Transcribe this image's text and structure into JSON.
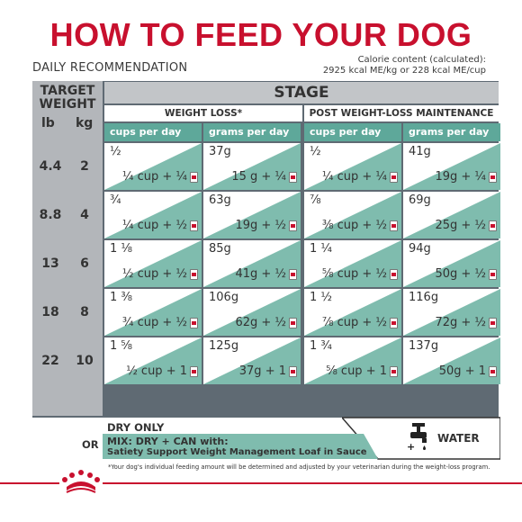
{
  "title": "HOW TO FEED YOUR DOG",
  "subtitle": "DAILY RECOMMENDATION",
  "calorie": {
    "line1": "Calorie content (calculated):",
    "line2": "2925 kcal ME/kg or 228 kcal ME/cup"
  },
  "weight_header": {
    "line1": "TARGET",
    "line2": "WEIGHT",
    "unit_lb": "lb",
    "unit_kg": "kg"
  },
  "stage_label": "STAGE",
  "groups": [
    "WEIGHT LOSS*",
    "POST WEIGHT-LOSS MAINTENANCE"
  ],
  "columns": [
    "cups per day",
    "grams per day",
    "cups per day",
    "grams per day"
  ],
  "rows": [
    {
      "lb": "4.4",
      "kg": "2",
      "cells": [
        {
          "top": "½",
          "bot": "¼ cup + ¼"
        },
        {
          "top": "37g",
          "bot": "15 g + ¼"
        },
        {
          "top": "½",
          "bot": "¼ cup + ¼"
        },
        {
          "top": "41g",
          "bot": "19g + ¼"
        }
      ]
    },
    {
      "lb": "8.8",
      "kg": "4",
      "cells": [
        {
          "top": "¾",
          "bot": "¼ cup + ½"
        },
        {
          "top": "63g",
          "bot": "19g + ½"
        },
        {
          "top": "⅞",
          "bot": "⅜ cup + ½"
        },
        {
          "top": "69g",
          "bot": "25g + ½"
        }
      ]
    },
    {
      "lb": "13",
      "kg": "6",
      "cells": [
        {
          "top": "1 ⅛",
          "bot": "½ cup + ½"
        },
        {
          "top": "85g",
          "bot": "41g + ½"
        },
        {
          "top": "1 ¼",
          "bot": "⅝ cup + ½"
        },
        {
          "top": "94g",
          "bot": "50g + ½"
        }
      ]
    },
    {
      "lb": "18",
      "kg": "8",
      "cells": [
        {
          "top": "1 ⅜",
          "bot": "¾ cup + ½"
        },
        {
          "top": "106g",
          "bot": "62g + ½"
        },
        {
          "top": "1 ½",
          "bot": "⅞ cup + ½"
        },
        {
          "top": "116g",
          "bot": "72g + ½"
        }
      ]
    },
    {
      "lb": "22",
      "kg": "10",
      "cells": [
        {
          "top": "1 ⅝",
          "bot": "½ cup + 1"
        },
        {
          "top": "125g",
          "bot": "37g + 1"
        },
        {
          "top": "1 ¾",
          "bot": "⅝ cup + 1"
        },
        {
          "top": "137g",
          "bot": "50g + 1"
        }
      ]
    }
  ],
  "dry_only": "DRY ONLY",
  "or_label": "OR",
  "mix_line1": "MIX: DRY + CAN with:",
  "mix_line2": "Satiety Support Weight Management Loaf in Sauce",
  "water_label": "WATER",
  "footnote": "*Your dog's individual feeding amount will be determined and adjusted by your veterinarian during the weight-loss program.",
  "icons": {
    "can": "can-icon",
    "water": "water-tap-icon",
    "logo": "crown-logo-icon"
  },
  "colors": {
    "title": "#c8102e",
    "teal": "#5ea89a",
    "teal_light": "#7fbcae",
    "grey_dark": "#5f6a73",
    "grey_light": "#b3b6ba"
  }
}
